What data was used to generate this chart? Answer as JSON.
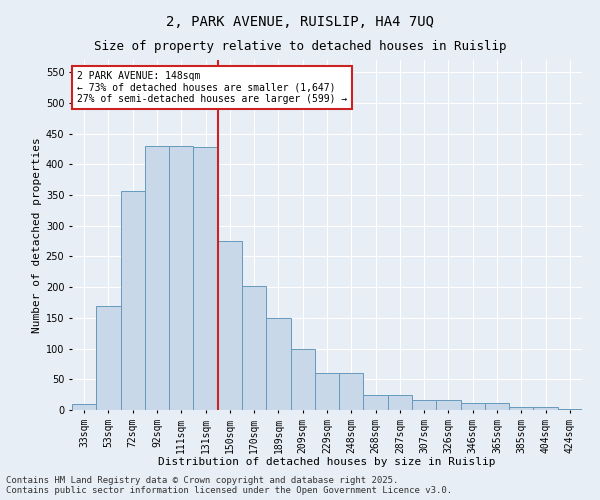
{
  "title": "2, PARK AVENUE, RUISLIP, HA4 7UQ",
  "subtitle": "Size of property relative to detached houses in Ruislip",
  "xlabel": "Distribution of detached houses by size in Ruislip",
  "ylabel": "Number of detached properties",
  "categories": [
    "33sqm",
    "53sqm",
    "72sqm",
    "92sqm",
    "111sqm",
    "131sqm",
    "150sqm",
    "170sqm",
    "189sqm",
    "209sqm",
    "229sqm",
    "248sqm",
    "268sqm",
    "287sqm",
    "307sqm",
    "326sqm",
    "346sqm",
    "365sqm",
    "385sqm",
    "404sqm",
    "424sqm"
  ],
  "values": [
    10,
    170,
    357,
    430,
    430,
    428,
    275,
    202,
    150,
    100,
    60,
    60,
    25,
    25,
    16,
    16,
    11,
    11,
    5,
    5,
    2
  ],
  "bar_color": "#c8d8e8",
  "bar_edge_color": "#6699bb",
  "vline_index": 6,
  "vline_color": "#cc2222",
  "annotation_text": "2 PARK AVENUE: 148sqm\n← 73% of detached houses are smaller (1,647)\n27% of semi-detached houses are larger (599) →",
  "annotation_box_color": "#ffffff",
  "annotation_box_edge_color": "#cc2222",
  "ylim": [
    0,
    570
  ],
  "yticks": [
    0,
    50,
    100,
    150,
    200,
    250,
    300,
    350,
    400,
    450,
    500,
    550
  ],
  "background_color": "#e8eef5",
  "grid_color": "#ffffff",
  "title_fontsize": 10,
  "subtitle_fontsize": 9,
  "xlabel_fontsize": 8,
  "ylabel_fontsize": 8,
  "annotation_fontsize": 7,
  "tick_fontsize": 7,
  "footer": "Contains HM Land Registry data © Crown copyright and database right 2025.\nContains public sector information licensed under the Open Government Licence v3.0.",
  "footer_fontsize": 6.5
}
